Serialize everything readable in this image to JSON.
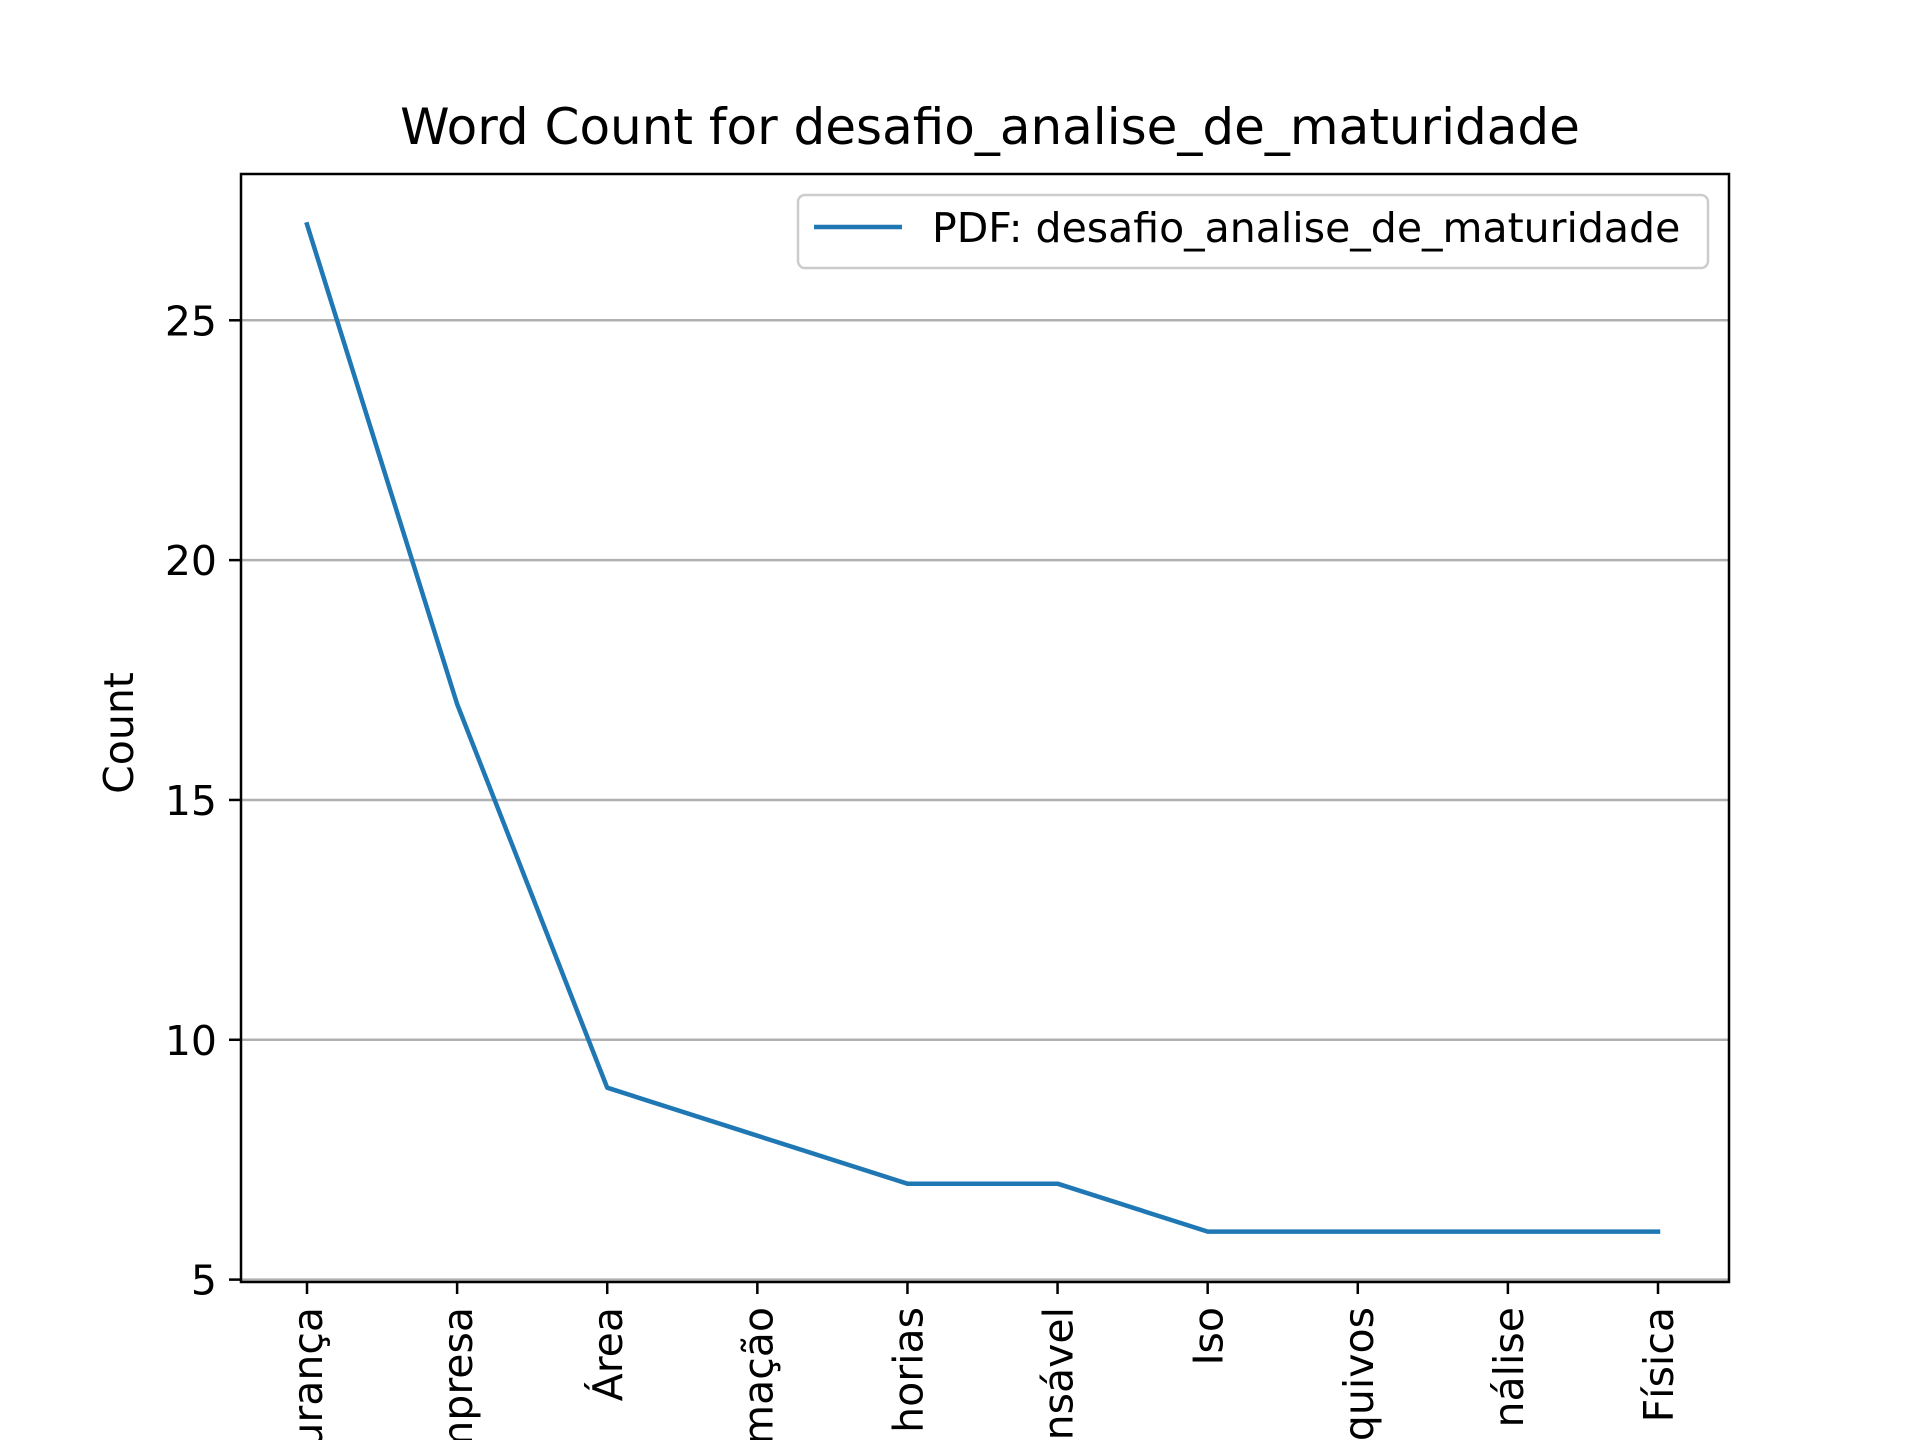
{
  "chart_data": {
    "type": "line",
    "title": "Word Count for desafio_analise_de_maturidade",
    "xlabel": "",
    "ylabel": "Count",
    "categories": [
      "urança",
      "mpresa",
      "Área",
      "mação",
      "horias",
      "nsável",
      "Iso",
      "quivos",
      "nálise",
      "Física"
    ],
    "series": [
      {
        "name": "PDF: desafio_analise_de_maturidade",
        "values": [
          27,
          17,
          9,
          8,
          7,
          7,
          6,
          6,
          6,
          6
        ],
        "color": "#1f77b4"
      }
    ],
    "ylim": [
      4.95,
      28.05
    ],
    "yticks": [
      5,
      10,
      15,
      20,
      25
    ],
    "grid": "y",
    "legend": "top-right"
  }
}
